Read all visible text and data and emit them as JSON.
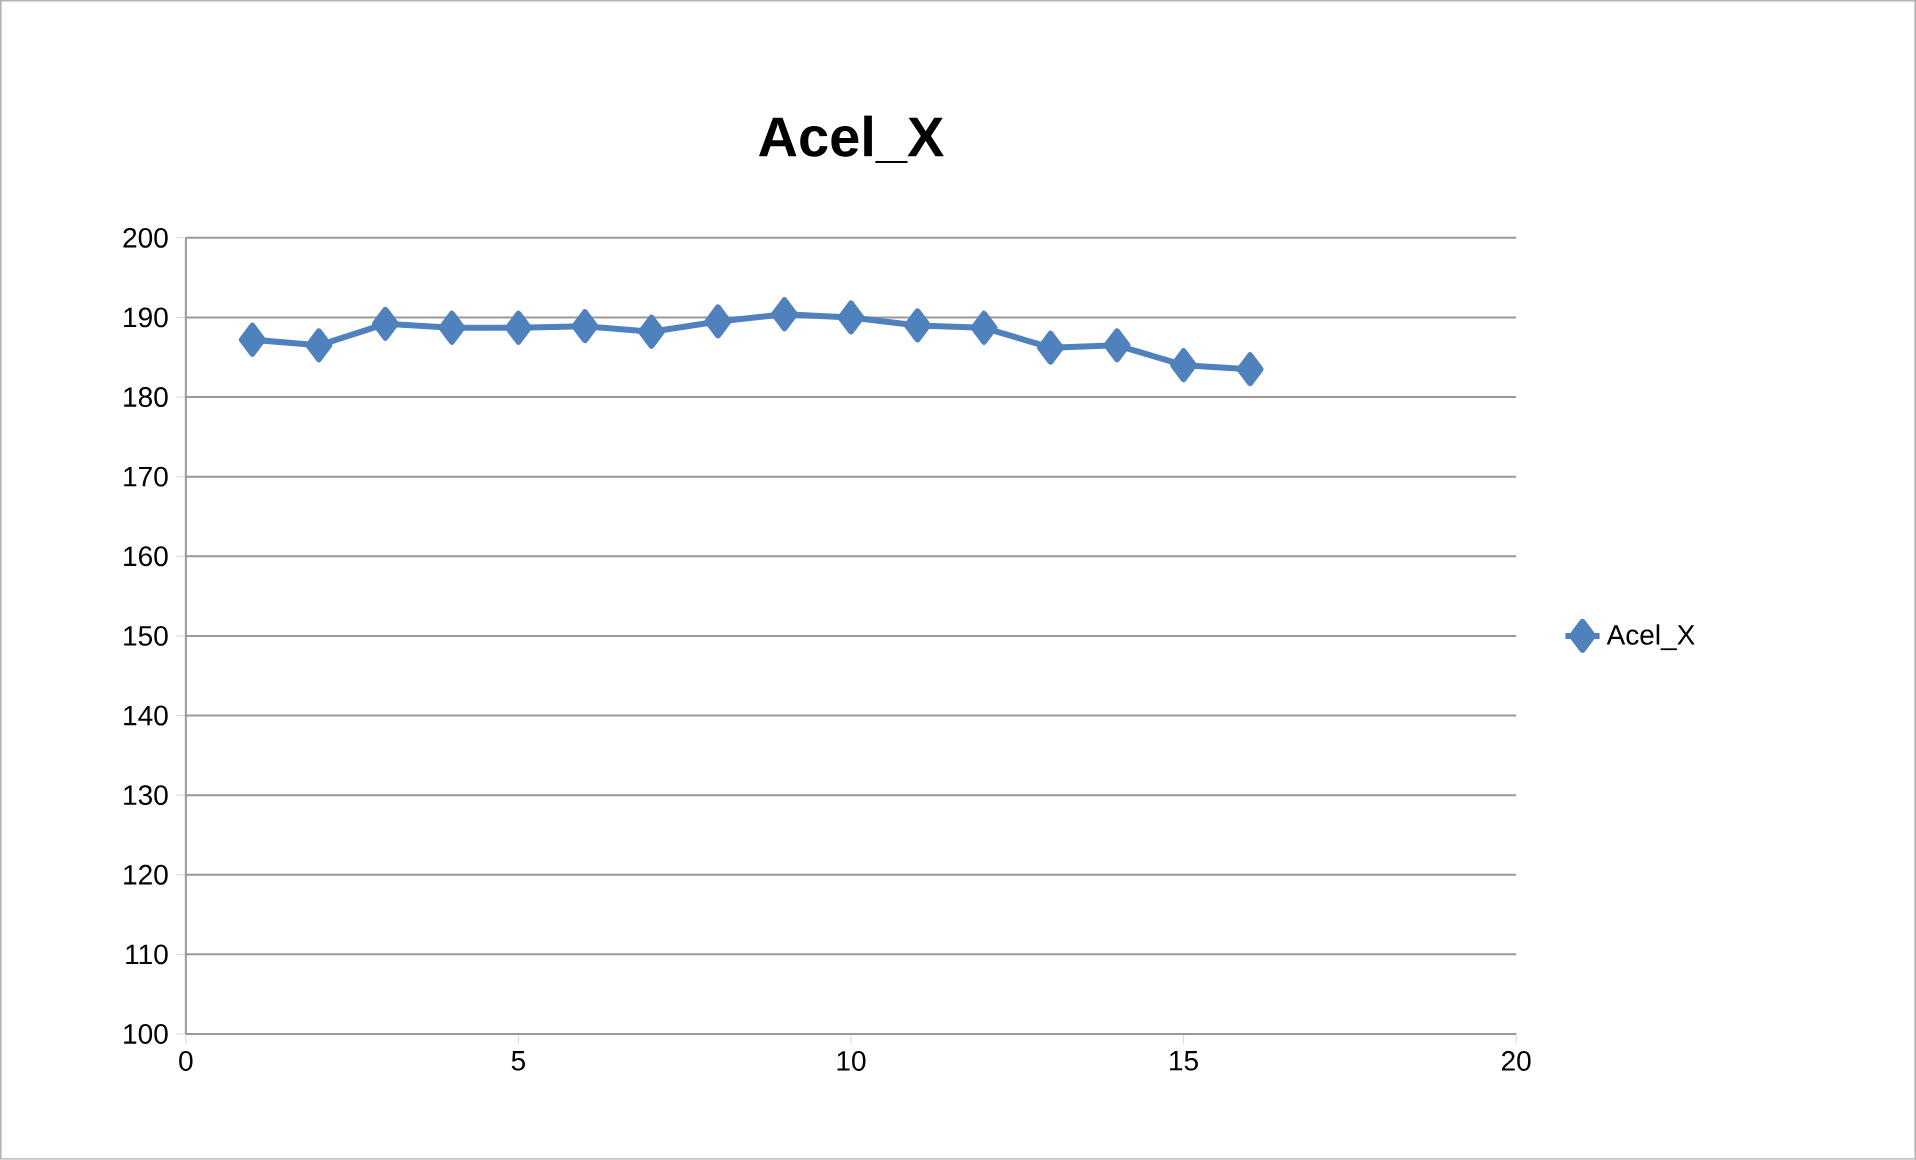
{
  "chart_data": {
    "type": "line",
    "title": "Acel_X",
    "x": [
      1,
      2,
      3,
      4,
      5,
      6,
      7,
      8,
      9,
      10,
      11,
      12,
      13,
      14,
      15,
      16
    ],
    "series": [
      {
        "name": "Acel_X",
        "color": "#4f81bd",
        "values": [
          187.2,
          186.5,
          189.2,
          188.7,
          188.7,
          188.9,
          188.2,
          189.5,
          190.4,
          190.0,
          189.0,
          188.7,
          186.2,
          186.5,
          184.0,
          183.5
        ]
      }
    ],
    "xlim": [
      0,
      20
    ],
    "xticks": [
      0,
      5,
      10,
      15,
      20
    ],
    "ylim": [
      100,
      200
    ],
    "yticks": [
      100,
      110,
      120,
      130,
      140,
      150,
      160,
      170,
      180,
      190,
      200
    ],
    "grid": "y",
    "legend": "right",
    "marker": "diamond",
    "line_style": "solid"
  }
}
